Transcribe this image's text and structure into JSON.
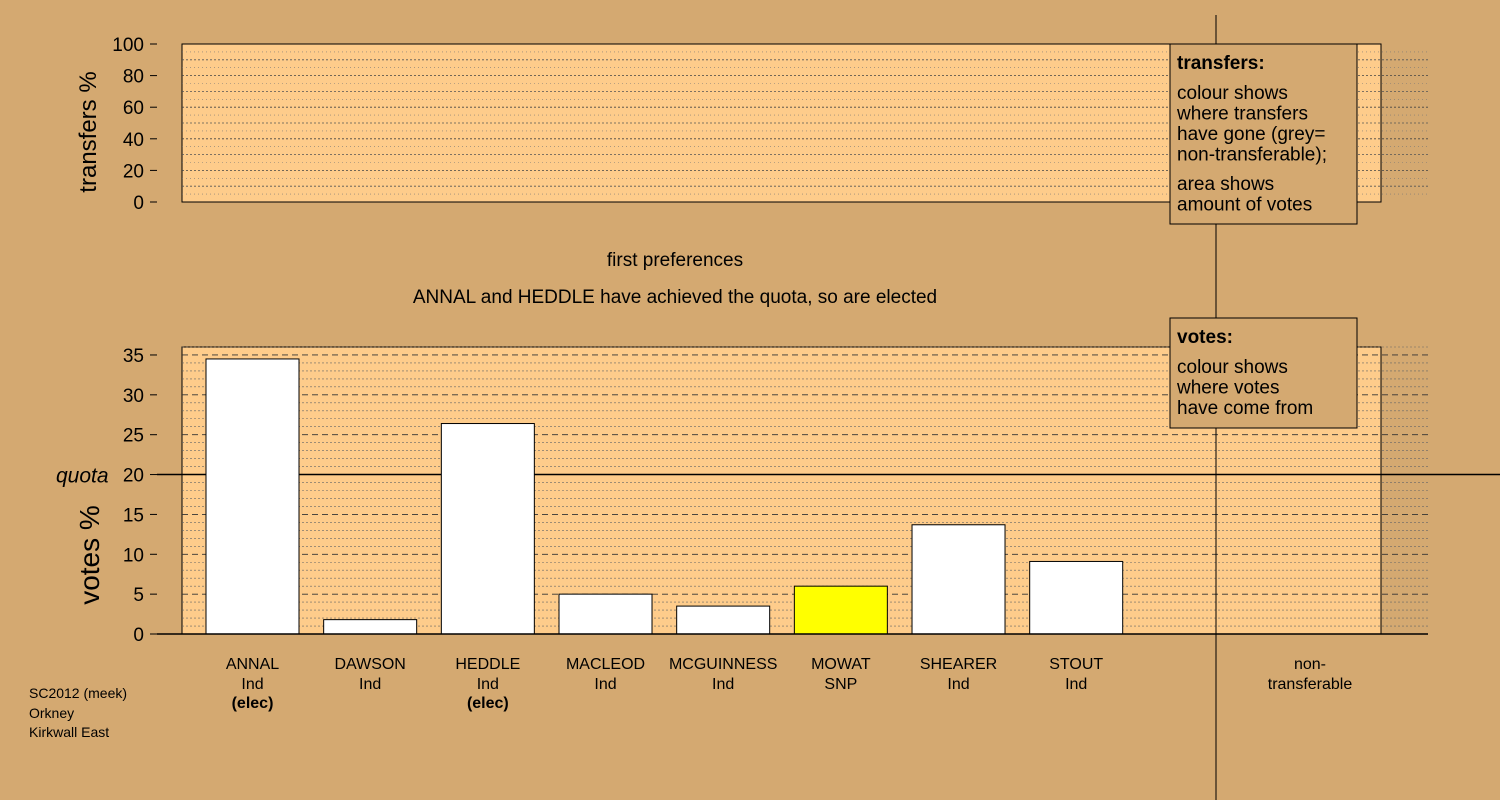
{
  "captions": {
    "stage": "first preferences",
    "status": "ANNAL and HEDDLE have achieved the quota, so are elected"
  },
  "top_panel": {
    "ylabel": "transfers %",
    "ticks": [
      "0",
      "20",
      "40",
      "60",
      "80",
      "100"
    ],
    "legend_title": "transfers:",
    "legend_lines_a": [
      "colour shows",
      "where transfers",
      "have gone (grey=",
      "non-transferable);"
    ],
    "legend_lines_b": [
      "area shows",
      "amount of votes"
    ]
  },
  "bottom_panel": {
    "ylabel": "votes %",
    "quota_label": "quota",
    "legend_title": "votes:",
    "legend_lines": [
      "colour shows",
      "where votes",
      "have come from"
    ]
  },
  "credit": [
    "SC2012 (meek)",
    "Orkney",
    "Kirkwall East"
  ],
  "colors": {
    "background": "#d4a971",
    "plot_fill": "#fecc8b",
    "bar_default": "#ffffff",
    "bar_snp": "#ffff00",
    "legend_fill": "#d4a971",
    "line": "#000000"
  },
  "chart_data": [
    {
      "type": "bar",
      "title": "",
      "ylabel": "transfers %",
      "ylim": [
        0,
        100
      ],
      "yticks": [
        0,
        20,
        40,
        60,
        80,
        100
      ],
      "grid": true,
      "values": []
    },
    {
      "type": "bar",
      "title": "first preferences",
      "subtitle": "ANNAL and HEDDLE have achieved the quota, so are elected",
      "ylabel": "votes %",
      "ylim": [
        0,
        36
      ],
      "yticks": [
        0,
        5,
        10,
        15,
        20,
        25,
        30,
        35
      ],
      "ytick_labels": [
        "0",
        "5",
        "10",
        "15",
        "20",
        "25",
        "30",
        "35"
      ],
      "quota": 20,
      "quota_label": "quota",
      "grid": true,
      "legend_position": "top-right",
      "categories": [
        {
          "name": "ANNAL",
          "party": "Ind",
          "note": "(elec)"
        },
        {
          "name": "DAWSON",
          "party": "Ind",
          "note": ""
        },
        {
          "name": "HEDDLE",
          "party": "Ind",
          "note": "(elec)"
        },
        {
          "name": "MACLEOD",
          "party": "Ind",
          "note": ""
        },
        {
          "name": "MCGUINNESS",
          "party": "Ind",
          "note": ""
        },
        {
          "name": "MOWAT",
          "party": "SNP",
          "note": ""
        },
        {
          "name": "SHEARER",
          "party": "Ind",
          "note": ""
        },
        {
          "name": "STOUT",
          "party": "Ind",
          "note": ""
        }
      ],
      "values": [
        34.5,
        1.8,
        26.4,
        5.0,
        3.5,
        6.0,
        13.7,
        9.1
      ],
      "bar_colors": [
        "#ffffff",
        "#ffffff",
        "#ffffff",
        "#ffffff",
        "#ffffff",
        "#ffff00",
        "#ffffff",
        "#ffffff"
      ],
      "nontransferable": {
        "label_lines": [
          "non-",
          "transferable"
        ],
        "value": 0
      }
    }
  ]
}
